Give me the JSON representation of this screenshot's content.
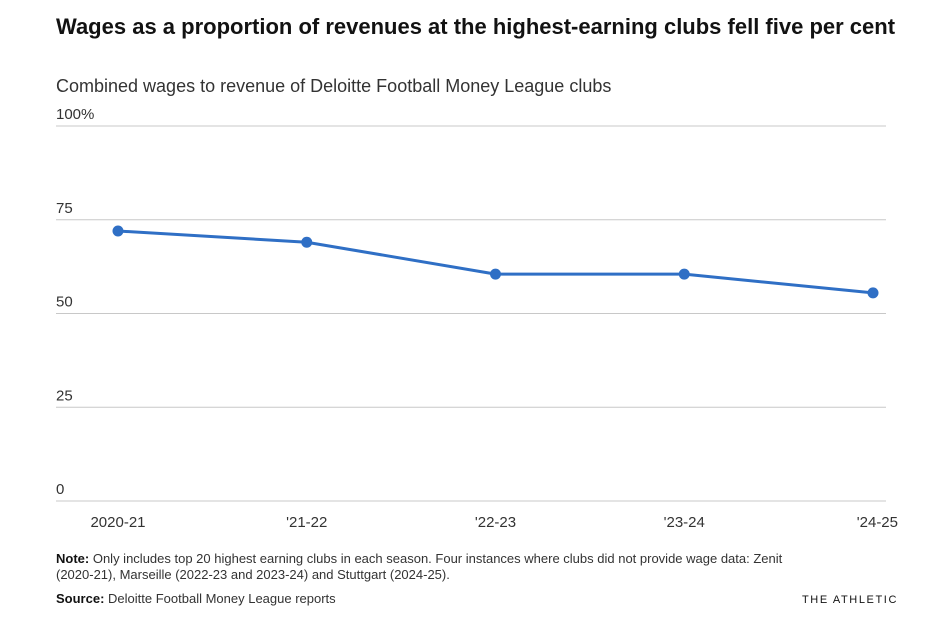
{
  "header": {
    "title": "Wages as a proportion of revenues at the highest-earning clubs fell five per cent",
    "subtitle": "Combined wages to revenue of Deloitte Football Money League clubs"
  },
  "footer": {
    "note_label": "Note:",
    "note_text": "Only includes top 20 highest earning clubs in each season. Four instances where clubs did not provide wage data: Zenit (2020-21), Marseille (2022-23 and 2023-24) and Stuttgart (2024-25).",
    "source_label": "Source:",
    "source_text": "Deloitte Football Money League reports",
    "brand": "THE ATHLETIC"
  },
  "colors": {
    "line": "#2f6fc5",
    "grid": "#c8c8c8",
    "axis_text": "#333333"
  },
  "chart_data": {
    "type": "line",
    "categories": [
      "2020-21",
      "'21-22",
      "'22-23",
      "'23-24",
      "'24-25"
    ],
    "series": [
      {
        "values": [
          72,
          69,
          60.5,
          60.5,
          55.5
        ]
      }
    ],
    "y_ticks": [
      "100%",
      "75",
      "50",
      "25",
      "0"
    ],
    "y_tick_values": [
      100,
      75,
      50,
      25,
      0
    ],
    "ylim": [
      0,
      100
    ],
    "grid": true,
    "xlabel": "",
    "ylabel": ""
  }
}
